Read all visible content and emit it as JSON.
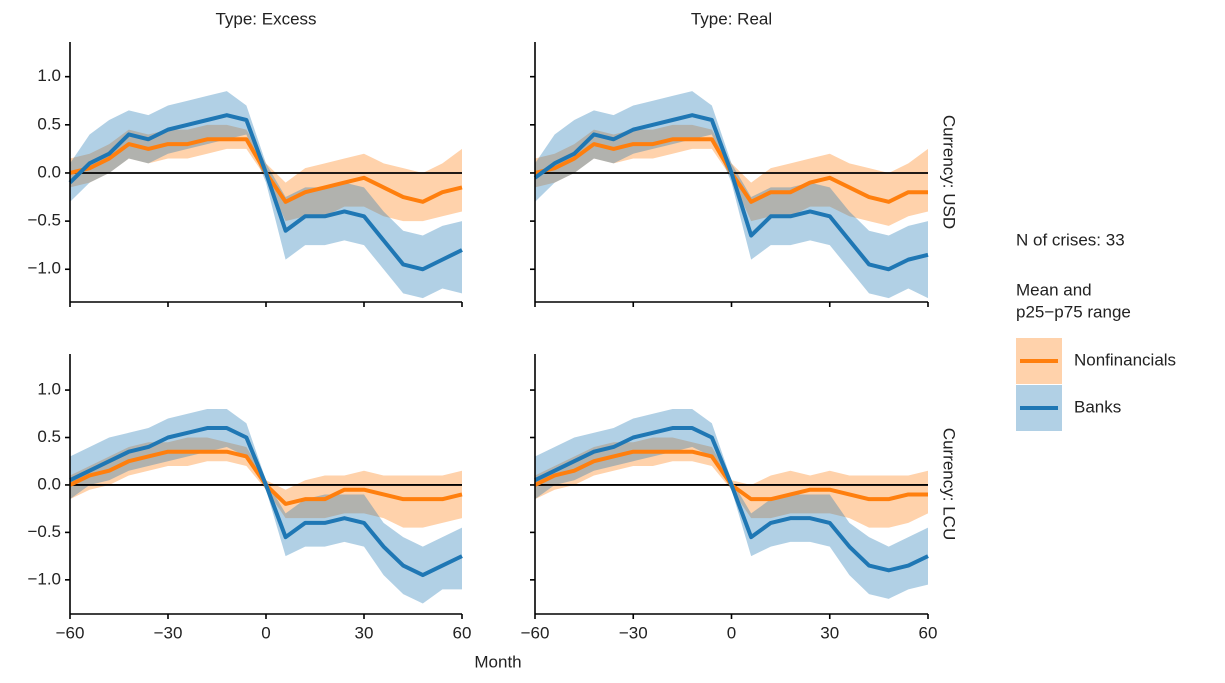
{
  "x_label": "Month",
  "legend_note": "N of crises: 33",
  "legend_title": [
    "Mean and",
    "p25−p75 range"
  ],
  "chart_data": [
    {
      "type": "line",
      "facet_col": "Type: Excess",
      "facet_row": "Currency: USD",
      "reference_line": 0,
      "x": [
        -60,
        -54,
        -48,
        -42,
        -36,
        -30,
        -24,
        -18,
        -12,
        -6,
        0,
        6,
        12,
        18,
        24,
        30,
        36,
        42,
        48,
        54,
        60
      ],
      "xlim": [
        -60,
        60
      ],
      "xticks": [
        {
          "value": -60,
          "label": "−60"
        },
        {
          "value": -30,
          "label": "−30"
        },
        0,
        30,
        60
      ],
      "ylim": [
        -1.34,
        1.36
      ],
      "yticks": [
        {
          "value": -1,
          "label": "−1.0"
        },
        {
          "value": -0.5,
          "label": "−0.5"
        },
        {
          "value": 0,
          "label": "0.0"
        },
        {
          "value": 0.5,
          "label": "0.5"
        },
        {
          "value": 1,
          "label": "1.0"
        }
      ],
      "series": [
        {
          "name": "Nonfinancials",
          "color": "#ff7f0e",
          "values": [
            0.0,
            0.05,
            0.15,
            0.3,
            0.25,
            0.3,
            0.3,
            0.35,
            0.35,
            0.35,
            0.0,
            -0.3,
            -0.2,
            -0.15,
            -0.1,
            -0.05,
            -0.15,
            -0.25,
            -0.3,
            -0.2,
            -0.15
          ],
          "lower": [
            -0.15,
            -0.1,
            0.0,
            0.15,
            0.1,
            0.15,
            0.15,
            0.2,
            0.25,
            0.25,
            -0.05,
            -0.5,
            -0.45,
            -0.45,
            -0.35,
            -0.35,
            -0.45,
            -0.5,
            -0.5,
            -0.45,
            -0.4
          ],
          "upper": [
            0.15,
            0.2,
            0.3,
            0.45,
            0.4,
            0.45,
            0.45,
            0.5,
            0.5,
            0.45,
            0.1,
            -0.1,
            0.05,
            0.1,
            0.15,
            0.2,
            0.1,
            0.05,
            0.0,
            0.1,
            0.25
          ]
        },
        {
          "name": "Banks",
          "color": "#1f77b4",
          "values": [
            -0.1,
            0.1,
            0.2,
            0.4,
            0.35,
            0.45,
            0.5,
            0.55,
            0.6,
            0.55,
            0.0,
            -0.6,
            -0.45,
            -0.45,
            -0.4,
            -0.45,
            -0.7,
            -0.95,
            -1.0,
            -0.9,
            -0.8
          ],
          "lower": [
            -0.3,
            -0.1,
            0.0,
            0.15,
            0.1,
            0.2,
            0.25,
            0.3,
            0.35,
            0.4,
            -0.1,
            -0.9,
            -0.75,
            -0.75,
            -0.7,
            -0.75,
            -1.0,
            -1.25,
            -1.3,
            -1.2,
            -1.25
          ],
          "upper": [
            0.1,
            0.4,
            0.55,
            0.65,
            0.6,
            0.7,
            0.75,
            0.8,
            0.85,
            0.7,
            0.1,
            -0.25,
            -0.15,
            -0.15,
            -0.1,
            -0.15,
            -0.4,
            -0.6,
            -0.65,
            -0.55,
            -0.5
          ]
        }
      ]
    },
    {
      "type": "line",
      "facet_col": "Type: Real",
      "facet_row": "Currency: USD",
      "reference_line": 0,
      "x": [
        -60,
        -54,
        -48,
        -42,
        -36,
        -30,
        -24,
        -18,
        -12,
        -6,
        0,
        6,
        12,
        18,
        24,
        30,
        36,
        42,
        48,
        54,
        60
      ],
      "xlim": [
        -60,
        60
      ],
      "xticks": [
        {
          "value": -60,
          "label": "−60"
        },
        {
          "value": -30,
          "label": "−30"
        },
        0,
        30,
        60
      ],
      "ylim": [
        -1.34,
        1.36
      ],
      "yticks": [
        {
          "value": -1,
          "label": "−1.0"
        },
        {
          "value": -0.5,
          "label": "−0.5"
        },
        {
          "value": 0,
          "label": "0.0"
        },
        {
          "value": 0.5,
          "label": "0.5"
        },
        {
          "value": 1,
          "label": "1.0"
        }
      ],
      "series": [
        {
          "name": "Nonfinancials",
          "color": "#ff7f0e",
          "values": [
            0.0,
            0.05,
            0.15,
            0.3,
            0.25,
            0.3,
            0.3,
            0.35,
            0.35,
            0.35,
            0.0,
            -0.3,
            -0.2,
            -0.2,
            -0.1,
            -0.05,
            -0.15,
            -0.25,
            -0.3,
            -0.2,
            -0.2
          ],
          "lower": [
            -0.15,
            -0.1,
            0.0,
            0.15,
            0.1,
            0.15,
            0.15,
            0.2,
            0.25,
            0.25,
            -0.05,
            -0.5,
            -0.45,
            -0.45,
            -0.35,
            -0.35,
            -0.45,
            -0.5,
            -0.55,
            -0.45,
            -0.4
          ],
          "upper": [
            0.15,
            0.2,
            0.3,
            0.45,
            0.4,
            0.45,
            0.45,
            0.5,
            0.5,
            0.45,
            0.1,
            -0.1,
            0.05,
            0.1,
            0.15,
            0.2,
            0.1,
            0.05,
            0.0,
            0.1,
            0.25
          ]
        },
        {
          "name": "Banks",
          "color": "#1f77b4",
          "values": [
            -0.05,
            0.1,
            0.2,
            0.4,
            0.35,
            0.45,
            0.5,
            0.55,
            0.6,
            0.55,
            0.0,
            -0.65,
            -0.45,
            -0.45,
            -0.4,
            -0.45,
            -0.7,
            -0.95,
            -1.0,
            -0.9,
            -0.85
          ],
          "lower": [
            -0.3,
            -0.1,
            0.0,
            0.15,
            0.1,
            0.2,
            0.25,
            0.3,
            0.35,
            0.4,
            -0.1,
            -0.9,
            -0.75,
            -0.75,
            -0.7,
            -0.75,
            -1.0,
            -1.25,
            -1.3,
            -1.2,
            -1.3
          ],
          "upper": [
            0.1,
            0.4,
            0.55,
            0.65,
            0.6,
            0.7,
            0.75,
            0.8,
            0.85,
            0.7,
            0.1,
            -0.25,
            -0.15,
            -0.15,
            -0.1,
            -0.15,
            -0.4,
            -0.6,
            -0.65,
            -0.55,
            -0.5
          ]
        }
      ]
    },
    {
      "type": "line",
      "facet_col": "Type: Excess",
      "facet_row": "Currency: LCU",
      "reference_line": 0,
      "x": [
        -60,
        -54,
        -48,
        -42,
        -36,
        -30,
        -24,
        -18,
        -12,
        -6,
        0,
        6,
        12,
        18,
        24,
        30,
        36,
        42,
        48,
        54,
        60
      ],
      "xlim": [
        -60,
        60
      ],
      "xticks": [
        {
          "value": -60,
          "label": "−60"
        },
        {
          "value": -30,
          "label": "−30"
        },
        0,
        30,
        60
      ],
      "ylim": [
        -1.36,
        1.38
      ],
      "yticks": [
        {
          "value": -1,
          "label": "−1.0"
        },
        {
          "value": -0.5,
          "label": "−0.5"
        },
        {
          "value": 0,
          "label": "0.0"
        },
        {
          "value": 0.5,
          "label": "0.5"
        },
        {
          "value": 1,
          "label": "1.0"
        }
      ],
      "series": [
        {
          "name": "Nonfinancials",
          "color": "#ff7f0e",
          "values": [
            0.0,
            0.1,
            0.15,
            0.25,
            0.3,
            0.35,
            0.35,
            0.35,
            0.35,
            0.3,
            0.0,
            -0.2,
            -0.15,
            -0.15,
            -0.05,
            -0.05,
            -0.1,
            -0.15,
            -0.15,
            -0.15,
            -0.1
          ],
          "lower": [
            -0.15,
            -0.05,
            0.0,
            0.1,
            0.15,
            0.2,
            0.2,
            0.25,
            0.25,
            0.2,
            -0.05,
            -0.35,
            -0.35,
            -0.35,
            -0.3,
            -0.3,
            -0.35,
            -0.45,
            -0.45,
            -0.4,
            -0.35
          ],
          "upper": [
            0.1,
            0.2,
            0.3,
            0.4,
            0.45,
            0.45,
            0.5,
            0.5,
            0.45,
            0.4,
            0.05,
            -0.05,
            0.05,
            0.1,
            0.1,
            0.15,
            0.1,
            0.1,
            0.1,
            0.1,
            0.15
          ]
        },
        {
          "name": "Banks",
          "color": "#1f77b4",
          "values": [
            0.05,
            0.15,
            0.25,
            0.35,
            0.4,
            0.5,
            0.55,
            0.6,
            0.6,
            0.5,
            0.0,
            -0.55,
            -0.4,
            -0.4,
            -0.35,
            -0.4,
            -0.65,
            -0.85,
            -0.95,
            -0.85,
            -0.75
          ],
          "lower": [
            -0.15,
            0.0,
            0.05,
            0.15,
            0.2,
            0.25,
            0.3,
            0.35,
            0.4,
            0.3,
            -0.05,
            -0.75,
            -0.65,
            -0.65,
            -0.6,
            -0.65,
            -0.95,
            -1.15,
            -1.25,
            -1.1,
            -1.1
          ],
          "upper": [
            0.3,
            0.4,
            0.5,
            0.55,
            0.6,
            0.7,
            0.75,
            0.8,
            0.8,
            0.65,
            0.05,
            -0.3,
            -0.15,
            -0.1,
            -0.1,
            -0.1,
            -0.4,
            -0.55,
            -0.65,
            -0.55,
            -0.45
          ]
        }
      ]
    },
    {
      "type": "line",
      "facet_col": "Type: Real",
      "facet_row": "Currency: LCU",
      "reference_line": 0,
      "x": [
        -60,
        -54,
        -48,
        -42,
        -36,
        -30,
        -24,
        -18,
        -12,
        -6,
        0,
        6,
        12,
        18,
        24,
        30,
        36,
        42,
        48,
        54,
        60
      ],
      "xlim": [
        -60,
        60
      ],
      "xticks": [
        {
          "value": -60,
          "label": "−60"
        },
        {
          "value": -30,
          "label": "−30"
        },
        0,
        30,
        60
      ],
      "ylim": [
        -1.36,
        1.38
      ],
      "yticks": [
        {
          "value": -1,
          "label": "−1.0"
        },
        {
          "value": -0.5,
          "label": "−0.5"
        },
        {
          "value": 0,
          "label": "0.0"
        },
        {
          "value": 0.5,
          "label": "0.5"
        },
        {
          "value": 1,
          "label": "1.0"
        }
      ],
      "series": [
        {
          "name": "Nonfinancials",
          "color": "#ff7f0e",
          "values": [
            0.0,
            0.1,
            0.15,
            0.25,
            0.3,
            0.35,
            0.35,
            0.35,
            0.35,
            0.3,
            0.0,
            -0.15,
            -0.15,
            -0.1,
            -0.05,
            -0.05,
            -0.1,
            -0.15,
            -0.15,
            -0.1,
            -0.1
          ],
          "lower": [
            -0.15,
            -0.05,
            0.0,
            0.1,
            0.15,
            0.2,
            0.2,
            0.25,
            0.25,
            0.2,
            -0.05,
            -0.35,
            -0.35,
            -0.3,
            -0.3,
            -0.3,
            -0.35,
            -0.45,
            -0.45,
            -0.4,
            -0.3
          ],
          "upper": [
            0.1,
            0.2,
            0.3,
            0.4,
            0.45,
            0.45,
            0.5,
            0.5,
            0.45,
            0.4,
            0.05,
            0.0,
            0.1,
            0.15,
            0.1,
            0.15,
            0.1,
            0.1,
            0.1,
            0.1,
            0.15
          ]
        },
        {
          "name": "Banks",
          "color": "#1f77b4",
          "values": [
            0.05,
            0.15,
            0.25,
            0.35,
            0.4,
            0.5,
            0.55,
            0.6,
            0.6,
            0.5,
            0.0,
            -0.55,
            -0.4,
            -0.35,
            -0.35,
            -0.4,
            -0.65,
            -0.85,
            -0.9,
            -0.85,
            -0.75
          ],
          "lower": [
            -0.15,
            0.0,
            0.05,
            0.15,
            0.2,
            0.25,
            0.3,
            0.35,
            0.4,
            0.3,
            -0.05,
            -0.75,
            -0.65,
            -0.6,
            -0.6,
            -0.65,
            -0.95,
            -1.15,
            -1.2,
            -1.1,
            -1.05
          ],
          "upper": [
            0.3,
            0.4,
            0.5,
            0.55,
            0.6,
            0.7,
            0.75,
            0.8,
            0.8,
            0.65,
            0.05,
            -0.3,
            -0.15,
            -0.1,
            -0.1,
            -0.1,
            -0.4,
            -0.55,
            -0.65,
            -0.55,
            -0.45
          ]
        }
      ]
    }
  ]
}
